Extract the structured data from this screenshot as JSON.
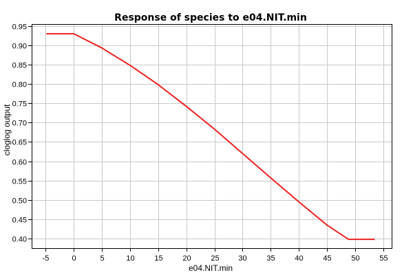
{
  "chart_data": {
    "type": "line",
    "title": "Response of species to e04.NIT.min",
    "xlabel": "e04.NIT.min",
    "ylabel": "cloglog output",
    "xlim": [
      -7.5,
      56.5
    ],
    "ylim": [
      0.375,
      0.955
    ],
    "x_ticks": [
      -5,
      0,
      5,
      10,
      15,
      20,
      25,
      30,
      35,
      40,
      45,
      50,
      55
    ],
    "y_ticks": [
      0.4,
      0.45,
      0.5,
      0.55,
      0.6,
      0.65,
      0.7,
      0.75,
      0.8,
      0.85,
      0.9,
      0.95
    ],
    "grid": true,
    "series": [
      {
        "color": "#ee2222",
        "points": [
          [
            -4.9,
            0.93
          ],
          [
            0,
            0.93
          ],
          [
            5,
            0.893
          ],
          [
            10,
            0.848
          ],
          [
            15,
            0.798
          ],
          [
            20,
            0.742
          ],
          [
            25,
            0.683
          ],
          [
            30,
            0.62
          ],
          [
            35,
            0.557
          ],
          [
            40,
            0.495
          ],
          [
            45,
            0.435
          ],
          [
            48.8,
            0.398
          ],
          [
            53.5,
            0.398
          ]
        ]
      }
    ]
  }
}
